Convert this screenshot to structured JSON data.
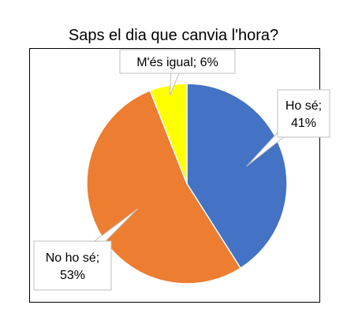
{
  "chart_data": {
    "type": "pie",
    "title": "Saps el dia que canvia l'hora?",
    "slices": [
      {
        "category": "Ho sé",
        "value": 41,
        "color": "#4472C4",
        "label_lines": [
          "Ho sé;",
          "41%"
        ]
      },
      {
        "category": "No ho sé",
        "value": 53,
        "color": "#ED7D31",
        "label_lines": [
          "No ho sé;",
          "53%"
        ]
      },
      {
        "category": "M'és igual",
        "value": 6,
        "color": "#FFFF00",
        "label_lines": [
          "M'és igual; 6%"
        ]
      }
    ],
    "start_angle_deg": 0,
    "direction": "clockwise",
    "legend": "none",
    "label_style": "callout"
  }
}
